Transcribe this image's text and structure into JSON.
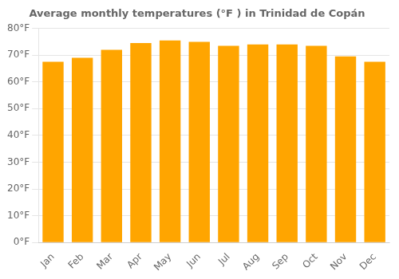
{
  "chart_data": {
    "type": "bar",
    "title": "Average monthly temperatures (°F ) in Trinidad de Copán",
    "categories": [
      "Jan",
      "Feb",
      "Mar",
      "Apr",
      "May",
      "Jun",
      "Jul",
      "Aug",
      "Sep",
      "Oct",
      "Nov",
      "Dec"
    ],
    "values": [
      67.5,
      69.0,
      72.0,
      74.5,
      75.5,
      75.0,
      73.5,
      74.0,
      74.0,
      73.5,
      69.5,
      67.5
    ],
    "color": "#FFA500",
    "ylim": [
      0,
      80
    ],
    "yticks": [
      {
        "value": 0,
        "label": "0°F"
      },
      {
        "value": 10,
        "label": "10°F"
      },
      {
        "value": 20,
        "label": "20°F"
      },
      {
        "value": 30,
        "label": "30°F"
      },
      {
        "value": 40,
        "label": "40°F"
      },
      {
        "value": 50,
        "label": "50°F"
      },
      {
        "value": 60,
        "label": "60°F"
      },
      {
        "value": 70,
        "label": "70°F"
      },
      {
        "value": 80,
        "label": "80°F"
      }
    ],
    "grid": true
  }
}
